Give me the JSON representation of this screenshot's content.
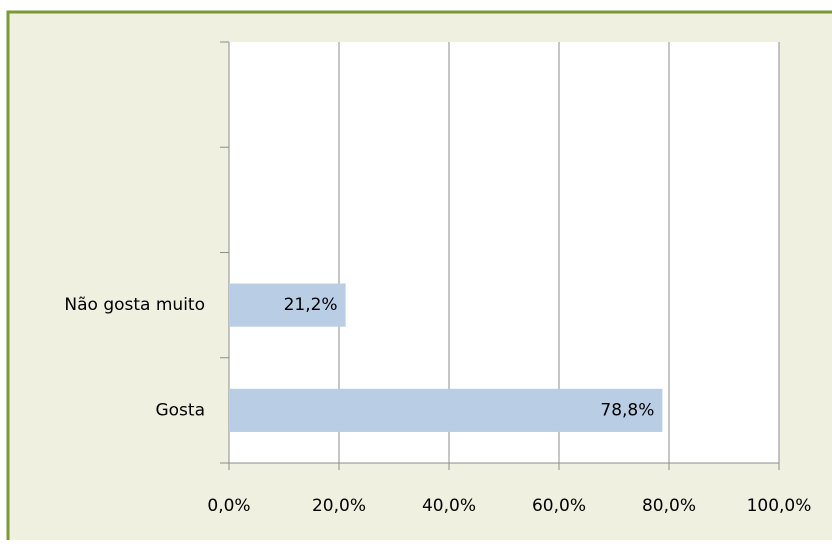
{
  "chart_data": {
    "type": "barh",
    "categories": [
      "Gosta",
      "Não gosta muito",
      null,
      null
    ],
    "values": [
      78.8,
      21.2,
      null,
      null
    ],
    "value_labels": [
      "78,8%",
      "21,2%",
      null,
      null
    ],
    "color": "#b9cde5",
    "xlim": [
      0,
      100
    ],
    "xticks": [
      {
        "value": 0,
        "label": "0,0%"
      },
      {
        "value": 20,
        "label": "20,0%"
      },
      {
        "value": 40,
        "label": "40,0%"
      },
      {
        "value": 60,
        "label": "60,0%"
      },
      {
        "value": 80,
        "label": "80,0%"
      },
      {
        "value": 100,
        "label": "100,0%"
      }
    ],
    "grid": true
  }
}
